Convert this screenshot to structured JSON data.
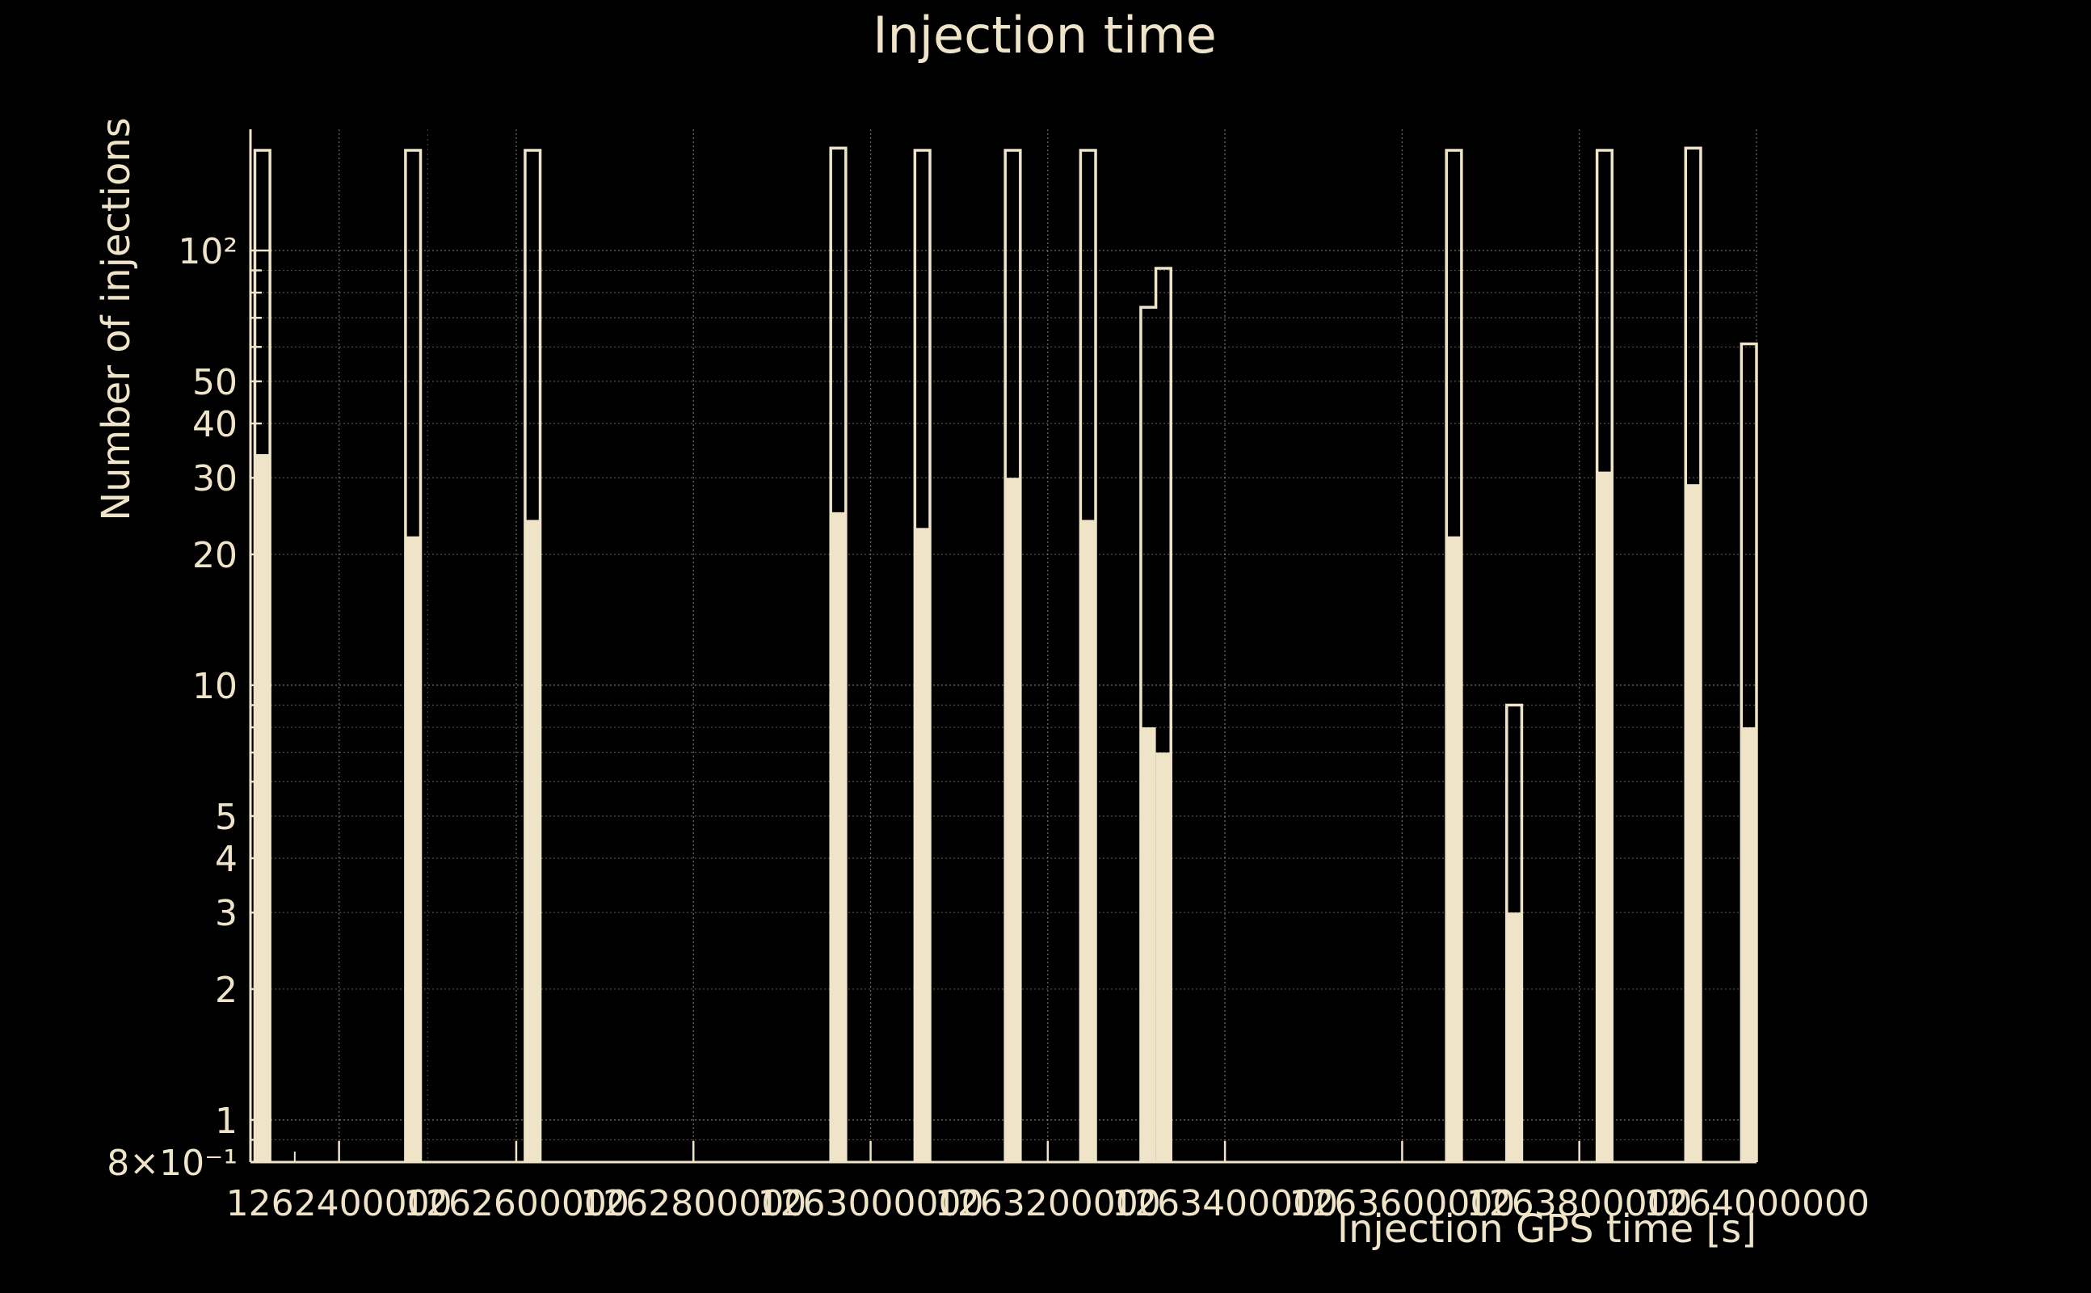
{
  "chart_data": {
    "type": "bar",
    "title": "Injection time",
    "xlabel": "Injection GPS time [s]",
    "ylabel": "Number of injections",
    "x_scale": "linear",
    "y_scale": "log",
    "xlim": [
      1262300000,
      1264000000
    ],
    "ylim": [
      0.8,
      190
    ],
    "grid": true,
    "colors": {
      "background": "#000000",
      "foreground": "#efe4c8"
    },
    "x_ticks": [
      {
        "value": 1262400000,
        "label": "1262400000"
      },
      {
        "value": 1262600000,
        "label": "1262600000"
      },
      {
        "value": 1262800000,
        "label": "1262800000"
      },
      {
        "value": 1263000000,
        "label": "1263000000"
      },
      {
        "value": 1263200000,
        "label": "1263200000"
      },
      {
        "value": 1263400000,
        "label": "1263400000"
      },
      {
        "value": 1263600000,
        "label": "1263600000"
      },
      {
        "value": 1263800000,
        "label": "1263800000"
      },
      {
        "value": 1264000000,
        "label": "1264000000"
      }
    ],
    "y_ticks": [
      {
        "value": 0.8,
        "label": "8×10⁻¹"
      },
      {
        "value": 1,
        "label": "1"
      },
      {
        "value": 2,
        "label": "2"
      },
      {
        "value": 3,
        "label": "3"
      },
      {
        "value": 4,
        "label": "4"
      },
      {
        "value": 5,
        "label": "5"
      },
      {
        "value": 10,
        "label": "10"
      },
      {
        "value": 20,
        "label": "20"
      },
      {
        "value": 30,
        "label": "30"
      },
      {
        "value": 40,
        "label": "40"
      },
      {
        "value": 50,
        "label": "50"
      },
      {
        "value": 100,
        "label": "10²"
      }
    ],
    "series": [
      {
        "style": "step-outline",
        "bins": [
          {
            "x0": 1262305000,
            "x1": 1262322000,
            "y": 170
          },
          {
            "x0": 1262475000,
            "x1": 1262492000,
            "y": 170
          },
          {
            "x0": 1262610000,
            "x1": 1262627000,
            "y": 170
          },
          {
            "x0": 1262955000,
            "x1": 1262972000,
            "y": 172
          },
          {
            "x0": 1263050000,
            "x1": 1263067000,
            "y": 170
          },
          {
            "x0": 1263152000,
            "x1": 1263169000,
            "y": 170
          },
          {
            "x0": 1263237000,
            "x1": 1263254000,
            "y": 170
          },
          {
            "x0": 1263305000,
            "x1": 1263322000,
            "y": 74
          },
          {
            "x0": 1263322000,
            "x1": 1263339000,
            "y": 91
          },
          {
            "x0": 1263650000,
            "x1": 1263667000,
            "y": 170
          },
          {
            "x0": 1263718000,
            "x1": 1263735000,
            "y": 9
          },
          {
            "x0": 1263820000,
            "x1": 1263837000,
            "y": 170
          },
          {
            "x0": 1263920000,
            "x1": 1263937000,
            "y": 172
          },
          {
            "x0": 1263983000,
            "x1": 1264000000,
            "y": 61
          }
        ]
      },
      {
        "style": "filled",
        "bins": [
          {
            "x0": 1262305000,
            "x1": 1262322000,
            "y": 34
          },
          {
            "x0": 1262475000,
            "x1": 1262492000,
            "y": 22
          },
          {
            "x0": 1262610000,
            "x1": 1262627000,
            "y": 24
          },
          {
            "x0": 1262955000,
            "x1": 1262972000,
            "y": 25
          },
          {
            "x0": 1263050000,
            "x1": 1263067000,
            "y": 23
          },
          {
            "x0": 1263152000,
            "x1": 1263169000,
            "y": 30
          },
          {
            "x0": 1263237000,
            "x1": 1263254000,
            "y": 24
          },
          {
            "x0": 1263305000,
            "x1": 1263322000,
            "y": 8
          },
          {
            "x0": 1263322000,
            "x1": 1263339000,
            "y": 7
          },
          {
            "x0": 1263650000,
            "x1": 1263667000,
            "y": 22
          },
          {
            "x0": 1263718000,
            "x1": 1263735000,
            "y": 3
          },
          {
            "x0": 1263820000,
            "x1": 1263837000,
            "y": 31
          },
          {
            "x0": 1263920000,
            "x1": 1263937000,
            "y": 29
          },
          {
            "x0": 1263983000,
            "x1": 1264000000,
            "y": 8
          }
        ]
      }
    ]
  }
}
